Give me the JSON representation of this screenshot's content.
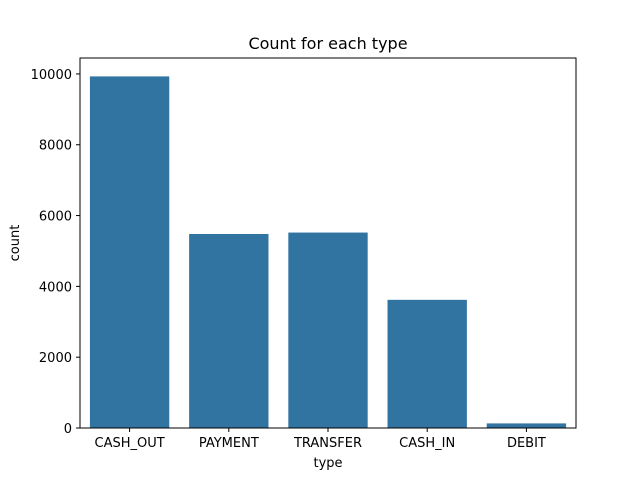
{
  "chart_data": {
    "type": "bar",
    "title": "Count for each type",
    "xlabel": "type",
    "ylabel": "count",
    "categories": [
      "CASH_OUT",
      "PAYMENT",
      "TRANSFER",
      "CASH_IN",
      "DEBIT"
    ],
    "values": [
      9930,
      5480,
      5520,
      3620,
      130
    ],
    "ylim": [
      0,
      10450
    ],
    "yticks": [
      0,
      2000,
      4000,
      6000,
      8000,
      10000
    ],
    "bar_color": "#3274a1",
    "grid": false,
    "legend": "none"
  }
}
